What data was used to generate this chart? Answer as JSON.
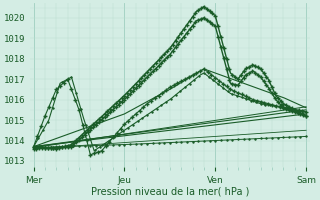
{
  "background_color": "#d4ede4",
  "grid_color_minor": "#b8ddd0",
  "grid_color_major": "#9fcfbf",
  "line_color_dark": "#1a5c28",
  "xlabel": "Pression niveau de la mer( hPa )",
  "xtick_labels": [
    "Mer",
    "Jeu",
    "Ven",
    "Sam"
  ],
  "xtick_positions": [
    0,
    48,
    96,
    144
  ],
  "ylim": [
    1012.7,
    1020.7
  ],
  "xlim": [
    -2,
    146
  ],
  "yticks": [
    1013,
    1014,
    1015,
    1016,
    1017,
    1018,
    1019,
    1020
  ],
  "figsize": [
    3.2,
    2.0
  ],
  "dpi": 100
}
